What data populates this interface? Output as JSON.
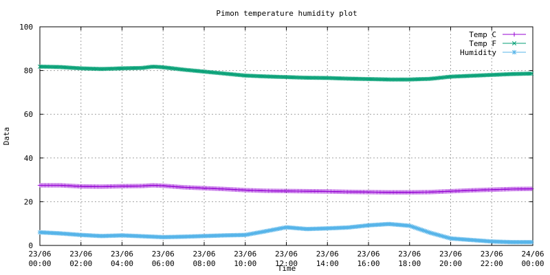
{
  "chart_data": {
    "type": "line",
    "title": "Pimon temperature   humidity plot",
    "xlabel": "Time",
    "ylabel": "Data",
    "ylim": [
      0,
      100
    ],
    "xlim": [
      0,
      24
    ],
    "y_ticks": [
      0,
      20,
      40,
      60,
      80,
      100
    ],
    "x_ticks": [
      {
        "h": 0,
        "date": "23/06",
        "time": "00:00"
      },
      {
        "h": 2,
        "date": "23/06",
        "time": "02:00"
      },
      {
        "h": 4,
        "date": "23/06",
        "time": "04:00"
      },
      {
        "h": 6,
        "date": "23/06",
        "time": "06:00"
      },
      {
        "h": 8,
        "date": "23/06",
        "time": "08:00"
      },
      {
        "h": 10,
        "date": "23/06",
        "time": "10:00"
      },
      {
        "h": 12,
        "date": "23/06",
        "time": "12:00"
      },
      {
        "h": 14,
        "date": "23/06",
        "time": "14:00"
      },
      {
        "h": 16,
        "date": "23/06",
        "time": "16:00"
      },
      {
        "h": 18,
        "date": "23/06",
        "time": "18:00"
      },
      {
        "h": 20,
        "date": "23/06",
        "time": "20:00"
      },
      {
        "h": 22,
        "date": "23/06",
        "time": "22:00"
      },
      {
        "h": 24,
        "date": "24/06",
        "time": "00:00"
      }
    ],
    "grid": true,
    "legend_position": "top-right",
    "series": [
      {
        "name": "Temp C",
        "color": "#9400d3",
        "marker": "plus",
        "points": [
          [
            0,
            27.5
          ],
          [
            1,
            27.5
          ],
          [
            2,
            27.0
          ],
          [
            3,
            26.9
          ],
          [
            4,
            27.1
          ],
          [
            5,
            27.2
          ],
          [
            5.5,
            27.5
          ],
          [
            6,
            27.3
          ],
          [
            7,
            26.6
          ],
          [
            8,
            26.2
          ],
          [
            9,
            25.8
          ],
          [
            10,
            25.3
          ],
          [
            11,
            25.0
          ],
          [
            12,
            24.9
          ],
          [
            13,
            24.8
          ],
          [
            14,
            24.7
          ],
          [
            15,
            24.5
          ],
          [
            16,
            24.4
          ],
          [
            17,
            24.3
          ],
          [
            18,
            24.3
          ],
          [
            19,
            24.4
          ],
          [
            20,
            24.8
          ],
          [
            21,
            25.2
          ],
          [
            22,
            25.5
          ],
          [
            23,
            25.8
          ],
          [
            24,
            25.9
          ]
        ]
      },
      {
        "name": "Temp F",
        "color": "#009e73",
        "marker": "cross",
        "points": [
          [
            0,
            81.8
          ],
          [
            1,
            81.6
          ],
          [
            2,
            81.0
          ],
          [
            3,
            80.7
          ],
          [
            4,
            81.0
          ],
          [
            5,
            81.2
          ],
          [
            5.5,
            81.8
          ],
          [
            6,
            81.5
          ],
          [
            7,
            80.4
          ],
          [
            8,
            79.5
          ],
          [
            9,
            78.6
          ],
          [
            10,
            77.7
          ],
          [
            11,
            77.3
          ],
          [
            12,
            77.0
          ],
          [
            13,
            76.7
          ],
          [
            14,
            76.6
          ],
          [
            15,
            76.3
          ],
          [
            16,
            76.1
          ],
          [
            17,
            75.9
          ],
          [
            18,
            75.9
          ],
          [
            19,
            76.2
          ],
          [
            20,
            77.2
          ],
          [
            21,
            77.6
          ],
          [
            22,
            78.0
          ],
          [
            23,
            78.4
          ],
          [
            24,
            78.6
          ]
        ]
      },
      {
        "name": "Humidity",
        "color": "#56b4e9",
        "marker": "star",
        "points": [
          [
            0,
            6.0
          ],
          [
            1,
            5.5
          ],
          [
            2,
            4.8
          ],
          [
            3,
            4.3
          ],
          [
            4,
            4.6
          ],
          [
            5,
            4.2
          ],
          [
            6,
            3.8
          ],
          [
            7,
            4.0
          ],
          [
            8,
            4.3
          ],
          [
            9,
            4.6
          ],
          [
            10,
            4.8
          ],
          [
            11,
            6.5
          ],
          [
            12,
            8.3
          ],
          [
            13,
            7.5
          ],
          [
            14,
            7.8
          ],
          [
            15,
            8.2
          ],
          [
            16,
            9.2
          ],
          [
            17,
            9.8
          ],
          [
            18,
            9.0
          ],
          [
            19,
            5.8
          ],
          [
            20,
            3.2
          ],
          [
            21,
            2.5
          ],
          [
            22,
            1.8
          ],
          [
            23,
            1.5
          ],
          [
            24,
            1.5
          ]
        ]
      }
    ]
  }
}
